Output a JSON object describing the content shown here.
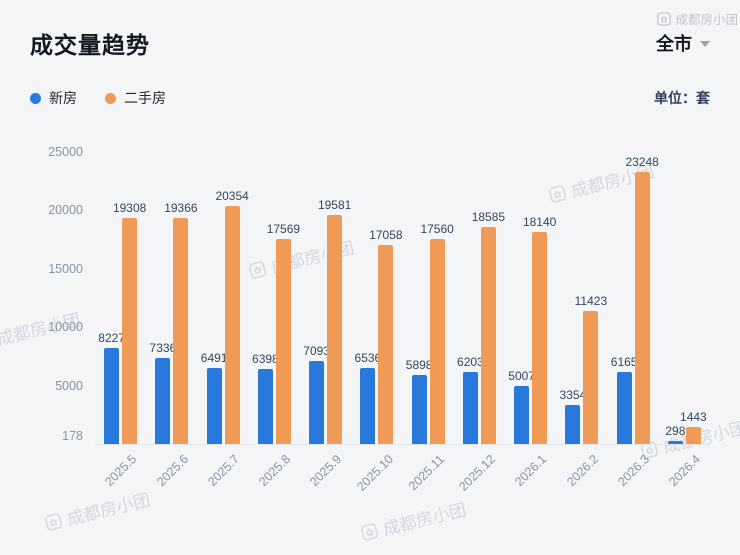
{
  "header": {
    "title": "成交量趋势",
    "region": "全市"
  },
  "unit": "单位：套",
  "watermark": {
    "text": "成都房小团"
  },
  "chart_data": {
    "type": "bar",
    "title": "成交量趋势",
    "categories": [
      "2025.5",
      "2025.6",
      "2025.7",
      "2025.8",
      "2025.9",
      "2025.10",
      "2025.11",
      "2025.12",
      "2026.1",
      "2026.2",
      "2026.3",
      "2026.4"
    ],
    "series": [
      {
        "name": "新房",
        "color": "#2979DD",
        "values": [
          8227,
          7336,
          6491,
          6398,
          7093,
          6536,
          5898,
          6203,
          5007,
          3354,
          6165,
          298
        ]
      },
      {
        "name": "二手房",
        "color": "#F09A58",
        "values": [
          19308,
          19366,
          20354,
          17569,
          19581,
          17058,
          17560,
          18585,
          18140,
          11423,
          23248,
          1443
        ]
      }
    ],
    "y_ticks": [
      178,
      5000,
      10000,
      15000,
      20000,
      25000
    ],
    "y_min": 0,
    "y_max": 25000,
    "ylabel": "",
    "xlabel": "",
    "grid": false,
    "value_labels": true,
    "legend_position": "top-left",
    "x_label_rotation": 45
  }
}
